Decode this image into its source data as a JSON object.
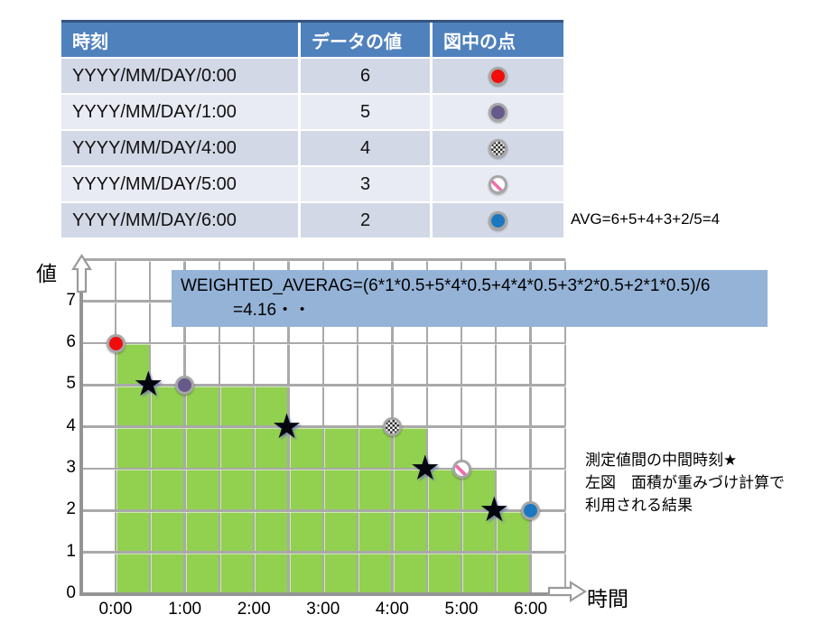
{
  "table": {
    "headers": [
      "時刻",
      "データの値",
      "図中の点"
    ],
    "rows": [
      {
        "time": "YYYY/MM/DAY/0:00",
        "value": "6",
        "marker": "red-dot"
      },
      {
        "time": "YYYY/MM/DAY/1:00",
        "value": "5",
        "marker": "purple-dot"
      },
      {
        "time": "YYYY/MM/DAY/4:00",
        "value": "4",
        "marker": "checkered-dot"
      },
      {
        "time": "YYYY/MM/DAY/5:00",
        "value": "3",
        "marker": "striped-dot"
      },
      {
        "time": "YYYY/MM/DAY/6:00",
        "value": "2",
        "marker": "blue-dot"
      }
    ]
  },
  "avg_note": "AVG=6+5+4+3+2/5=4",
  "weighted_box": {
    "line1": "WEIGHTED_AVERAG=(6*1*0.5+5*4*0.5+4*4*0.5+3*2*0.5+2*1*0.5)/6",
    "line2": "=4.16・・",
    "bg_color": "#95b3d7"
  },
  "annotation": {
    "line1": "測定値間の中間時刻★",
    "line2": "左図　面積が重みづけ計算で",
    "line3": "利用される結果"
  },
  "chart_data": {
    "type": "area",
    "subtype": "step-area-with-points",
    "title": "",
    "xlabel": "時間",
    "ylabel": "値",
    "x_ticks": [
      "0:00",
      "1:00",
      "2:00",
      "3:00",
      "4:00",
      "5:00",
      "6:00"
    ],
    "y_ticks": [
      "0",
      "1",
      "2",
      "3",
      "4",
      "5",
      "6",
      "7"
    ],
    "xlim_hours": [
      0,
      6.5
    ],
    "ylim": [
      0,
      8
    ],
    "grid": "on",
    "area_color": "#92d050",
    "points": [
      {
        "x": 0,
        "y": 6,
        "marker": "red-dot"
      },
      {
        "x": 1,
        "y": 5,
        "marker": "purple-dot"
      },
      {
        "x": 4,
        "y": 4,
        "marker": "checkered-dot"
      },
      {
        "x": 5,
        "y": 3,
        "marker": "striped-dot"
      },
      {
        "x": 6,
        "y": 2,
        "marker": "blue-dot"
      }
    ],
    "midpoint_stars": [
      {
        "x": 0.5,
        "y": 5
      },
      {
        "x": 2.5,
        "y": 4
      },
      {
        "x": 4.5,
        "y": 3
      },
      {
        "x": 5.5,
        "y": 2
      }
    ],
    "steps": [
      {
        "from": 0,
        "to": 0.5,
        "value": 6
      },
      {
        "from": 0.5,
        "to": 2.5,
        "value": 5
      },
      {
        "from": 2.5,
        "to": 4.5,
        "value": 4
      },
      {
        "from": 4.5,
        "to": 5.5,
        "value": 3
      },
      {
        "from": 5.5,
        "to": 6,
        "value": 2
      }
    ],
    "star_glyph": "★"
  }
}
